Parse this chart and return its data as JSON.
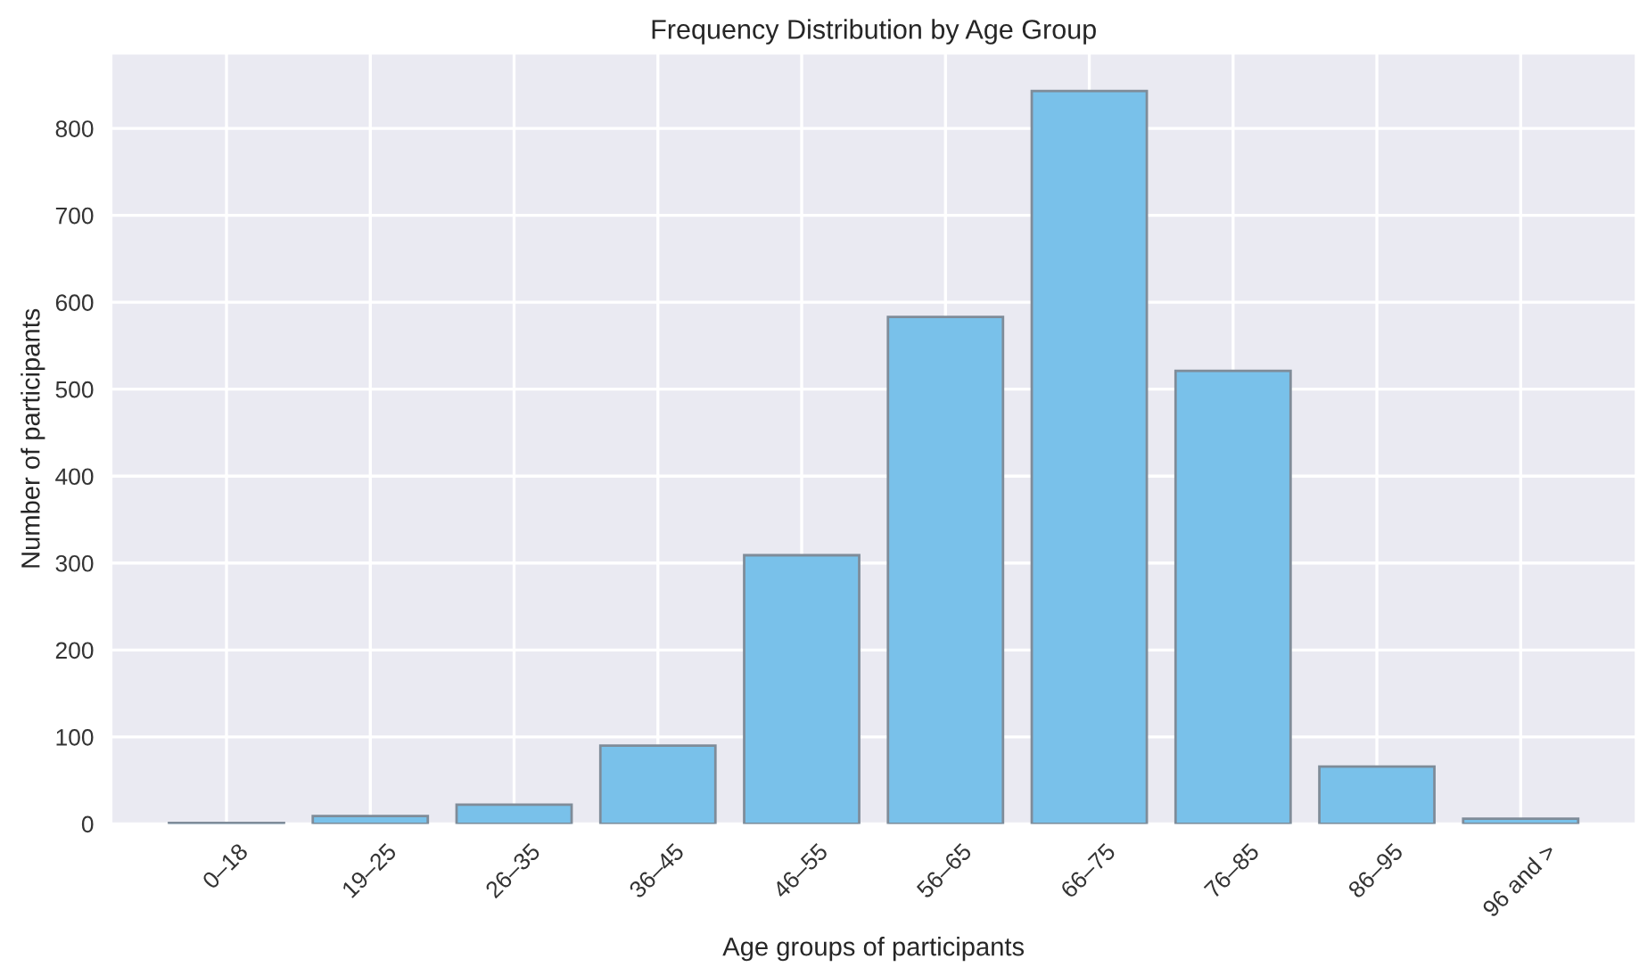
{
  "chart_data": {
    "type": "bar",
    "title": "Frequency Distribution by Age Group",
    "xlabel": "Age groups of participants",
    "ylabel": "Number of participants",
    "categories": [
      "0–18",
      "19–25",
      "26–35",
      "36–45",
      "46–55",
      "56–65",
      "66–75",
      "76–85",
      "86–95",
      "96 and >"
    ],
    "values": [
      1,
      9,
      22,
      90,
      309,
      583,
      843,
      521,
      66,
      6
    ],
    "color": "#79c1ea",
    "ylim": [
      0,
      886
    ],
    "yticks": [
      0,
      100,
      200,
      300,
      400,
      500,
      600,
      700,
      800
    ],
    "grid": true
  }
}
